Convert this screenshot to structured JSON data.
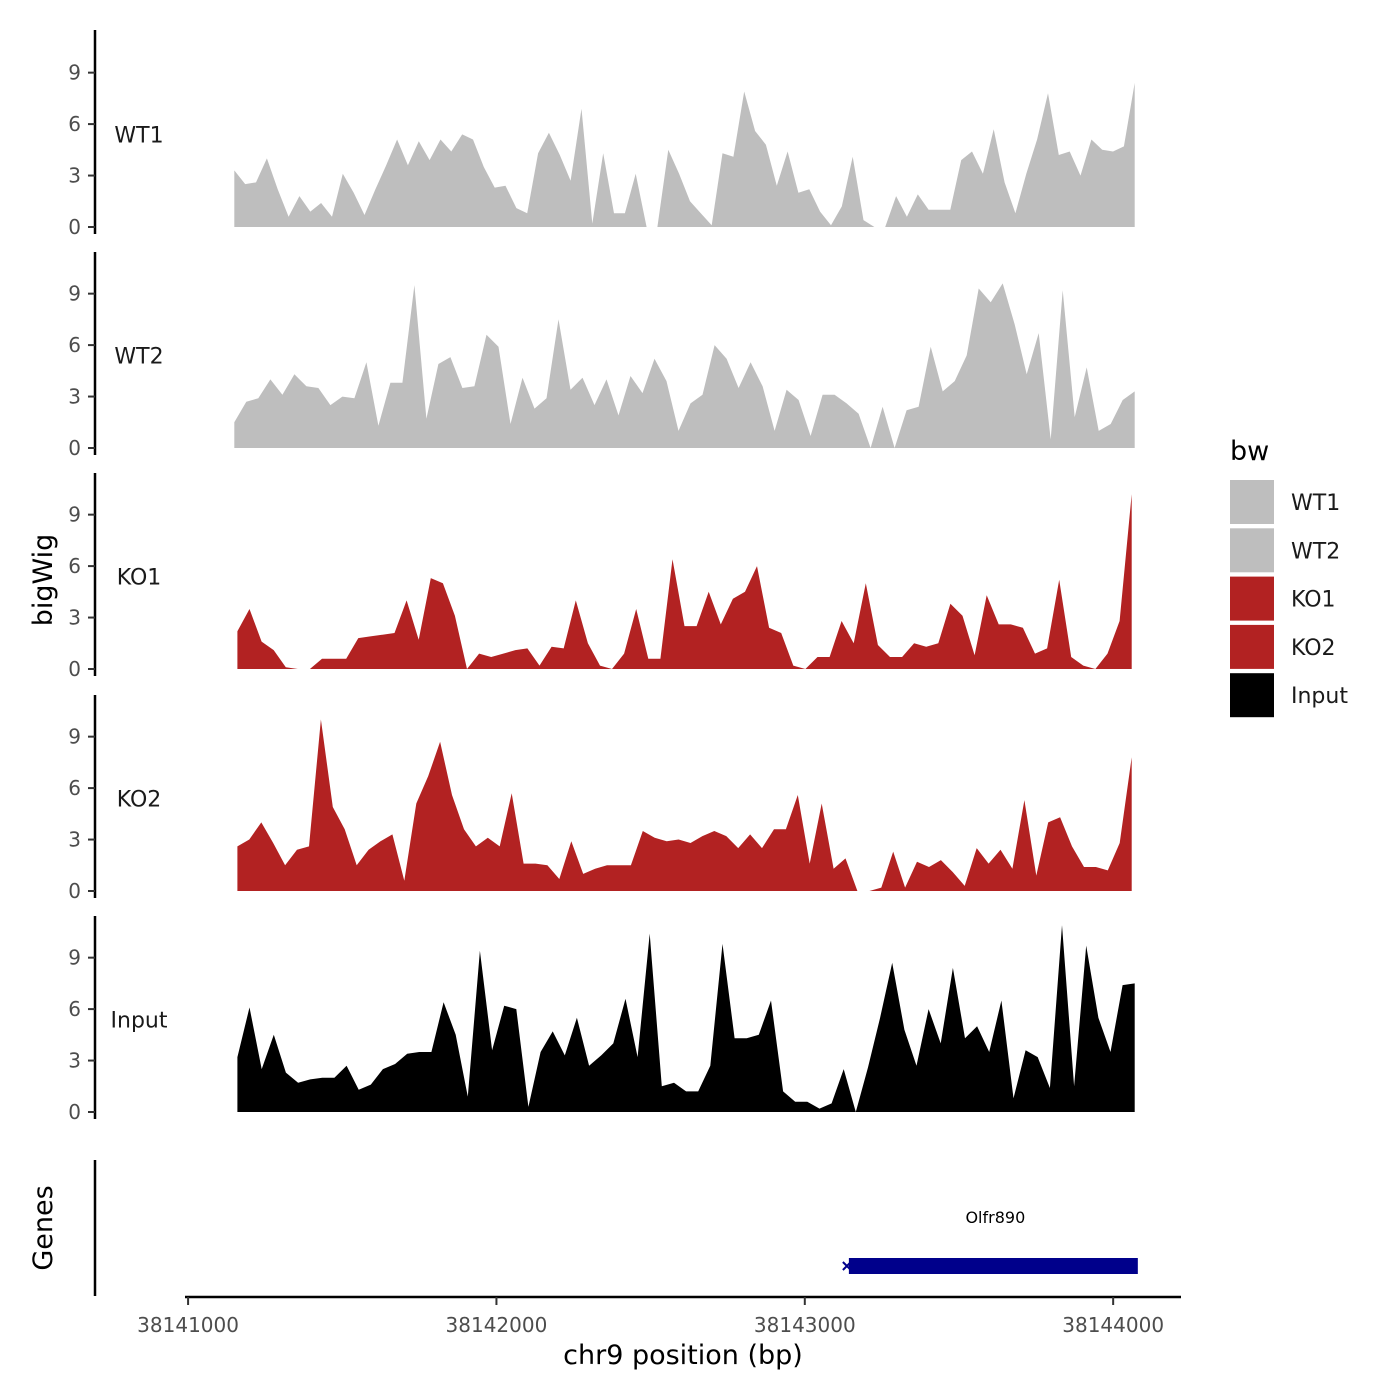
{
  "chart_data": {
    "type": "area",
    "ylabel": "bigWig",
    "xlabel": "chr9 position (bp)",
    "xlim": [
      38140990,
      38144220
    ],
    "ylim": [
      0,
      11.5
    ],
    "y_ticks": [
      0,
      3,
      6,
      9
    ],
    "y_tick_labels": [
      "0",
      "3",
      "6",
      "9"
    ],
    "x_ticks": [
      38141000,
      38142000,
      38143000,
      38144000
    ],
    "x_tick_labels": [
      "38141000",
      "38142000",
      "38143000",
      "38144000"
    ],
    "legend": {
      "title": "bw",
      "position": "right",
      "entries": [
        {
          "label": "WT1",
          "color": "#bebebe"
        },
        {
          "label": "WT2",
          "color": "#bebebe"
        },
        {
          "label": "KO1",
          "color": "#b22222"
        },
        {
          "label": "KO2",
          "color": "#b22222"
        },
        {
          "label": "Input",
          "color": "#000000"
        }
      ]
    },
    "series": [
      {
        "name": "WT1",
        "label": "WT1",
        "color": "#bebebe",
        "x_start": 38141150,
        "x_end": 38144070,
        "values": [
          3.3,
          2.5,
          2.6,
          4,
          2.2,
          0.6,
          1.8,
          0.9,
          1.4,
          0.6,
          3.1,
          2,
          0.7,
          2.2,
          3.6,
          5.1,
          3.6,
          5,
          3.9,
          5.1,
          4.4,
          5.4,
          5.1,
          3.5,
          2.3,
          2.4,
          1.1,
          0.8,
          4.3,
          5.5,
          4.2,
          2.7,
          6.9,
          0.2,
          4.3,
          0.8,
          0.8,
          3.1,
          0,
          0,
          4.5,
          3.1,
          1.5,
          0.8,
          0.1,
          4.3,
          4.1,
          7.9,
          5.6,
          4.8,
          2.4,
          4.4,
          2,
          2.2,
          0.9,
          0.1,
          1.2,
          4.1,
          0.4,
          0,
          0,
          1.8,
          0.6,
          1.9,
          1,
          1,
          1,
          3.9,
          4.4,
          3.1,
          5.7,
          2.6,
          0.8,
          3.1,
          5.1,
          7.8,
          4.2,
          4.4,
          3,
          5.1,
          4.5,
          4.4,
          4.7,
          8.4
        ]
      },
      {
        "name": "WT2",
        "label": "WT2",
        "color": "#bebebe",
        "x_start": 38141150,
        "x_end": 38144070,
        "values": [
          1.5,
          2.7,
          2.9,
          4,
          3.1,
          4.3,
          3.6,
          3.5,
          2.5,
          3,
          2.9,
          5,
          1.3,
          3.8,
          3.8,
          9.5,
          1.7,
          4.9,
          5.3,
          3.5,
          3.6,
          6.6,
          5.9,
          1.4,
          4.1,
          2.3,
          2.9,
          7.5,
          3.4,
          4.1,
          2.5,
          4,
          1.9,
          4.2,
          3.2,
          5.2,
          3.9,
          1,
          2.6,
          3.1,
          6,
          5.2,
          3.5,
          5,
          3.6,
          1,
          3.4,
          2.8,
          0.7,
          3.1,
          3.1,
          2.6,
          2,
          0,
          2.4,
          0,
          2.2,
          2.4,
          5.9,
          3.3,
          3.9,
          5.4,
          9.3,
          8.5,
          9.6,
          7.2,
          4.3,
          6.7,
          0.5,
          9.2,
          1.8,
          4.7,
          1,
          1.4,
          2.8,
          3.3
        ]
      },
      {
        "name": "KO1",
        "label": "KO1",
        "color": "#b22222",
        "x_start": 38141160,
        "x_end": 38144060,
        "values": [
          2.2,
          3.5,
          1.6,
          1.1,
          0.1,
          0,
          0,
          0.6,
          0.6,
          0.6,
          1.8,
          1.9,
          2,
          2.1,
          4,
          1.7,
          5.3,
          5,
          3.1,
          0,
          0.9,
          0.7,
          0.9,
          1.1,
          1.2,
          0.2,
          1.3,
          1.2,
          4,
          1.5,
          0.2,
          0,
          0.9,
          3.5,
          0.6,
          0.6,
          6.4,
          2.5,
          2.5,
          4.5,
          2.6,
          4.1,
          4.5,
          6,
          2.4,
          2.1,
          0.2,
          0,
          0.7,
          0.7,
          2.8,
          1.5,
          5,
          1.4,
          0.7,
          0.7,
          1.5,
          1.3,
          1.5,
          3.8,
          3.1,
          0.8,
          4.3,
          2.6,
          2.6,
          2.4,
          0.9,
          1.2,
          5.2,
          0.7,
          0.2,
          0,
          0.9,
          2.8,
          10.2
        ]
      },
      {
        "name": "KO2",
        "label": "KO2",
        "color": "#b22222",
        "x_start": 38141160,
        "x_end": 38144060,
        "values": [
          2.6,
          3,
          4,
          2.8,
          1.5,
          2.4,
          2.6,
          10,
          4.9,
          3.6,
          1.5,
          2.4,
          2.9,
          3.3,
          0.6,
          5.1,
          6.7,
          8.7,
          5.6,
          3.6,
          2.6,
          3.1,
          2.6,
          5.7,
          1.6,
          1.6,
          1.5,
          0.7,
          2.9,
          1,
          1.3,
          1.5,
          1.5,
          1.5,
          3.5,
          3.1,
          2.9,
          3,
          2.8,
          3.2,
          3.5,
          3.2,
          2.5,
          3.3,
          2.5,
          3.6,
          3.6,
          5.6,
          1.6,
          5.1,
          1.3,
          1.9,
          0,
          0,
          0.2,
          2.3,
          0.2,
          1.7,
          1.4,
          1.8,
          1.1,
          0.3,
          2.5,
          1.6,
          2.4,
          1.3,
          5.3,
          0.9,
          4,
          4.3,
          2.6,
          1.4,
          1.4,
          1.2,
          2.8,
          7.8
        ]
      },
      {
        "name": "Input",
        "label": "Input",
        "color": "#000000",
        "x_start": 38141160,
        "x_end": 38144070,
        "values": [
          3.2,
          6.1,
          2.5,
          4.5,
          2.3,
          1.7,
          1.9,
          2,
          2,
          2.7,
          1.3,
          1.6,
          2.5,
          2.8,
          3.4,
          3.5,
          3.5,
          6.4,
          4.5,
          0.9,
          9.4,
          3.6,
          6.2,
          6,
          0.3,
          3.5,
          4.7,
          3.3,
          5.5,
          2.7,
          3.3,
          4,
          6.6,
          3.2,
          10.4,
          1.5,
          1.7,
          1.2,
          1.2,
          2.7,
          9.8,
          4.3,
          4.3,
          4.5,
          6.5,
          1.2,
          0.6,
          0.6,
          0.2,
          0.5,
          2.5,
          0,
          2.6,
          5.5,
          8.7,
          4.8,
          2.7,
          6,
          4,
          8.4,
          4.3,
          5,
          3.5,
          6.5,
          0.8,
          3.6,
          3.2,
          1.4,
          10.9,
          1.5,
          9.7,
          5.5,
          3.5,
          7.4,
          7.5
        ]
      }
    ],
    "genes": {
      "label": "Genes",
      "items": [
        {
          "name": "Olfr890",
          "start": 38143130,
          "end": 38144080,
          "color": "#00008b"
        }
      ]
    }
  }
}
